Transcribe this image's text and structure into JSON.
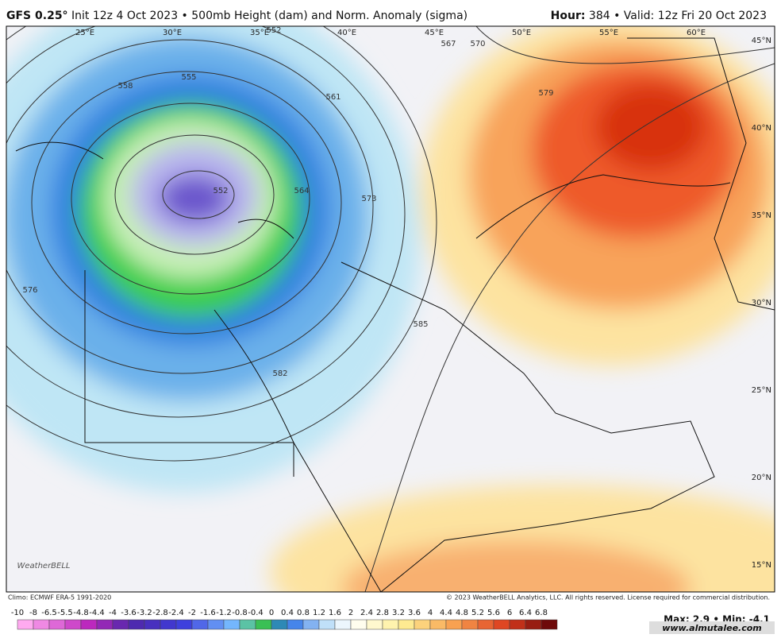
{
  "header": {
    "left_model": "GFS 0.25°",
    "left_text": "Init 12z 4 Oct 2023 • 500mb Height (dam) and Norm. Anomaly (sigma)",
    "right_hour_label": "Hour:",
    "right_text": "384 • Valid: 12z Fri 20 Oct 2023"
  },
  "map": {
    "longitude_labels": [
      "25°E",
      "30°E",
      "35°E",
      "40°E",
      "45°E",
      "50°E",
      "55°E",
      "60°E"
    ],
    "latitude_labels": [
      "45°N",
      "40°N",
      "35°N",
      "30°N",
      "25°N",
      "20°N",
      "15°N"
    ],
    "contour_labels": [
      "552",
      "552",
      "555",
      "558",
      "561",
      "564",
      "567",
      "570",
      "573",
      "576",
      "579",
      "582",
      "585"
    ],
    "logo": "WeatherBELL"
  },
  "footer": {
    "climo": "Climo: ECMWF ERA-5 1991-2020",
    "copyright": "© 2023 WeatherBELL Analytics, LLC. All rights reserved. License required for commercial distribution.",
    "max_min": "Max: 2.9 • Min: -4.1",
    "watermark": "www.almutalee.com"
  },
  "colorbar": {
    "labels": [
      "-10",
      "-8",
      "-6.5",
      "-5.5",
      "-4.8",
      "-4.4",
      "-4",
      "-3.6",
      "-3.2",
      "-2.8",
      "-2.4",
      "-2",
      "-1.6",
      "-1.2",
      "-0.8",
      "-0.4",
      "0",
      "0.4",
      "0.8",
      "1.2",
      "1.6",
      "2",
      "2.4",
      "2.8",
      "3.2",
      "3.6",
      "4",
      "4.4",
      "4.8",
      "5.2",
      "5.6",
      "6",
      "6.4",
      "6.8"
    ]
  }
}
